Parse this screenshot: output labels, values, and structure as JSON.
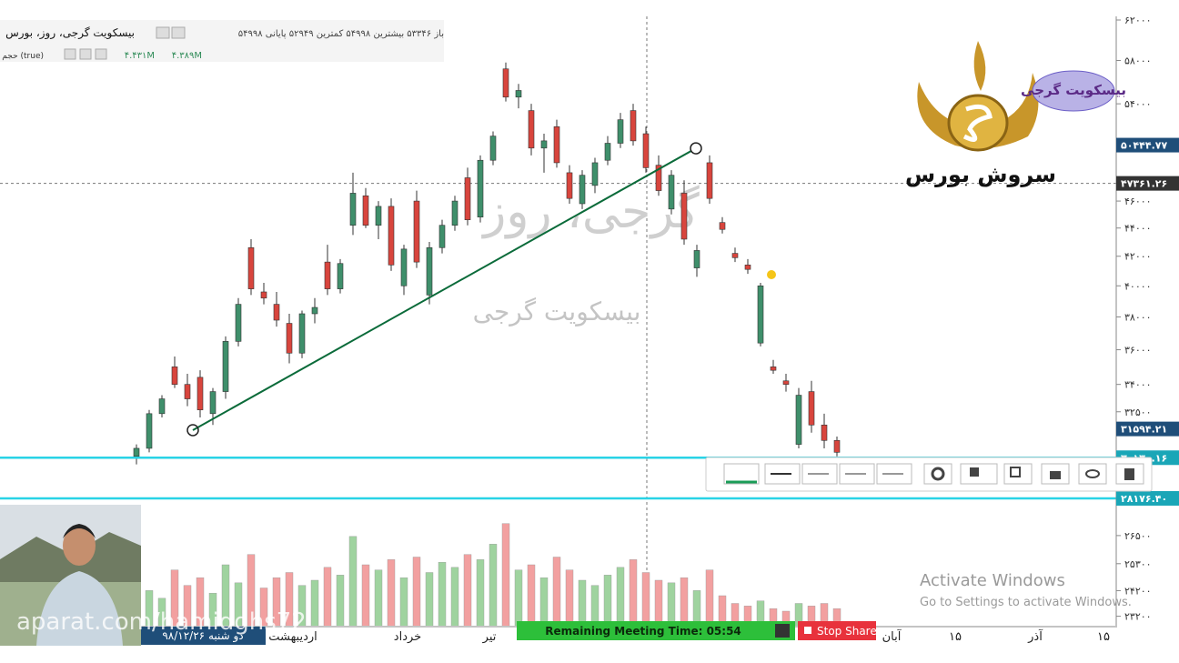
{
  "header": {
    "title": "بیسکویت گرجی، روز، بورس",
    "ohlc": "باز ۵۳۳۴۶ بیشترین ۵۴۹۹۸ کمترین ۵۲۹۴۹ پایانی ۵۴۹۹۸",
    "volume_label": "حجم (true)",
    "volume_values": [
      "۴.۴۳۱M",
      "۴.۳۸۹M"
    ]
  },
  "price_chart": {
    "log_scale": true,
    "ylim": [
      22000,
      62000
    ],
    "yticks": [
      {
        "value": 62000,
        "label": "۶۲۰۰۰"
      },
      {
        "value": 58000,
        "label": "۵۸۰۰۰"
      },
      {
        "value": 54000,
        "label": "۵۴۰۰۰"
      },
      {
        "value": 46000,
        "label": "۴۶۰۰۰"
      },
      {
        "value": 44000,
        "label": "۴۴۰۰۰"
      },
      {
        "value": 42000,
        "label": "۴۲۰۰۰"
      },
      {
        "value": 40000,
        "label": "۴۰۰۰۰"
      },
      {
        "value": 38000,
        "label": "۳۸۰۰۰"
      },
      {
        "value": 36000,
        "label": "۳۶۰۰۰"
      },
      {
        "value": 34000,
        "label": "۳۴۰۰۰"
      },
      {
        "value": 32500,
        "label": "۳۲۵۰۰"
      },
      {
        "value": 26500,
        "label": "۲۶۵۰۰"
      },
      {
        "value": 25300,
        "label": "۲۵۳۰۰"
      },
      {
        "value": 24200,
        "label": "۲۴۲۰۰"
      },
      {
        "value": 23200,
        "label": "۲۳۲۰۰"
      }
    ],
    "price_markers": [
      {
        "value": 50444.77,
        "label": "۵۰۴۴۴.۷۷",
        "color": "#1f4e79"
      },
      {
        "value": 47361.26,
        "label": "۴۷۳۶۱.۲۶",
        "color": "#333333"
      },
      {
        "value": 31594.21,
        "label": "۳۱۵۹۴.۲۱",
        "color": "#1f4e79"
      },
      {
        "value": 30130.16,
        "label": "۳۰۱۳۰.۱۶",
        "color": "#1aa6b7"
      },
      {
        "value": 28176.4,
        "label": "۲۸۱۷۶.۴۰",
        "color": "#1aa6b7"
      }
    ],
    "horizontal_lines": [
      30130.16,
      28176.4
    ],
    "crosshair_price": 47361.26,
    "trendline": [
      31530,
      50180
    ],
    "up_color": "#3f8f6b",
    "down_color": "#d8453d",
    "candles": [
      [
        30200,
        30800,
        29800,
        30600
      ],
      [
        30600,
        32600,
        30400,
        32400
      ],
      [
        32400,
        33400,
        32200,
        33200
      ],
      [
        35000,
        35600,
        33800,
        34000
      ],
      [
        34000,
        34600,
        32800,
        33200
      ],
      [
        34400,
        34800,
        32200,
        32600
      ],
      [
        32400,
        33800,
        31800,
        33600
      ],
      [
        33600,
        36800,
        33200,
        36500
      ],
      [
        36500,
        39200,
        36200,
        38800
      ],
      [
        42600,
        43200,
        39400,
        39800
      ],
      [
        39600,
        40200,
        38800,
        39200
      ],
      [
        38800,
        39600,
        37400,
        37800
      ],
      [
        37600,
        38200,
        35200,
        35800
      ],
      [
        35800,
        38400,
        35500,
        38200
      ],
      [
        38200,
        39200,
        37600,
        38600
      ],
      [
        41600,
        42800,
        39400,
        39800
      ],
      [
        39800,
        41800,
        39500,
        41500
      ],
      [
        44200,
        48200,
        43500,
        46600
      ],
      [
        46400,
        47000,
        44000,
        44200
      ],
      [
        44200,
        46000,
        43200,
        45600
      ],
      [
        45600,
        46200,
        41000,
        41400
      ],
      [
        40000,
        42800,
        39400,
        42500
      ],
      [
        46000,
        46800,
        41200,
        41600
      ],
      [
        39400,
        43000,
        38800,
        42600
      ],
      [
        42600,
        44600,
        42200,
        44200
      ],
      [
        44200,
        46400,
        43800,
        46000
      ],
      [
        47800,
        48600,
        44200,
        44600
      ],
      [
        44800,
        49600,
        44400,
        49200
      ],
      [
        49200,
        51600,
        48800,
        51200
      ],
      [
        57200,
        57800,
        54200,
        54600
      ],
      [
        54600,
        55800,
        53600,
        55200
      ],
      [
        53400,
        54000,
        49600,
        50200
      ],
      [
        50200,
        51400,
        48200,
        50800
      ],
      [
        52000,
        52600,
        48600,
        49000
      ],
      [
        48200,
        48800,
        45800,
        46200
      ],
      [
        45800,
        48400,
        45400,
        48000
      ],
      [
        47200,
        49400,
        46600,
        49000
      ],
      [
        49200,
        51200,
        48800,
        50600
      ],
      [
        50600,
        53200,
        50200,
        52600
      ],
      [
        53400,
        54000,
        50400,
        50800
      ],
      [
        51400,
        52000,
        48200,
        48600
      ],
      [
        48800,
        49600,
        46400,
        46800
      ],
      [
        45400,
        48400,
        45000,
        48000
      ],
      [
        46600,
        47600,
        42800,
        43200
      ],
      [
        41200,
        42800,
        40600,
        42400
      ],
      [
        49000,
        49600,
        45800,
        46200
      ],
      [
        44400,
        44800,
        43600,
        43900
      ],
      [
        42200,
        42600,
        41600,
        41900
      ],
      [
        41400,
        41800,
        40800,
        41100
      ],
      [
        36400,
        40200,
        36200,
        40000
      ],
      [
        35000,
        35400,
        34600,
        34800
      ],
      [
        34200,
        34600,
        33600,
        34000
      ],
      [
        30800,
        33800,
        30600,
        33400
      ],
      [
        33600,
        34200,
        31400,
        31800
      ],
      [
        31800,
        32400,
        30600,
        31000
      ],
      [
        31000,
        31200,
        30200,
        30400
      ]
    ],
    "volume_ylim": [
      0,
      6
    ],
    "volume_up_color": "#9fd39f",
    "volume_down_color": "#f2a0a0",
    "volumes": [
      0.8,
      1.4,
      1.1,
      2.2,
      1.6,
      1.9,
      1.3,
      2.4,
      1.7,
      2.8,
      1.5,
      1.9,
      2.1,
      1.6,
      1.8,
      2.3,
      2.0,
      3.5,
      2.4,
      2.2,
      2.6,
      1.9,
      2.7,
      2.1,
      2.5,
      2.3,
      2.8,
      2.6,
      3.2,
      4.0,
      2.2,
      2.4,
      1.9,
      2.7,
      2.2,
      1.8,
      1.6,
      2.0,
      2.3,
      2.6,
      2.1,
      1.8,
      1.7,
      1.9,
      1.4,
      2.2,
      1.2,
      0.9,
      0.8,
      1.0,
      0.7,
      0.6,
      0.9,
      0.8,
      0.9,
      0.7
    ]
  },
  "time_axis": {
    "date_label": "دو شنبه ۹۸/۱۲/۲۶",
    "labels": [
      "اردیبهشت",
      "خرداد",
      "تیر",
      "آبان",
      "۱۵",
      "آذر",
      "۱۵"
    ]
  },
  "logo": {
    "badge": "بیسکویت گرجی",
    "brand": "سروش بورس"
  },
  "watermark": {
    "main": "گرجی، روز",
    "sub": "بیسکویت گرجی"
  },
  "overlay": {
    "site": "aparat.com/hamidghs72",
    "activate_title": "Activate Windows",
    "activate_sub": "Go to Settings to activate Windows.",
    "meeting_time": "Remaining Meeting Time: 05:54",
    "stop_share": "Stop Share"
  }
}
